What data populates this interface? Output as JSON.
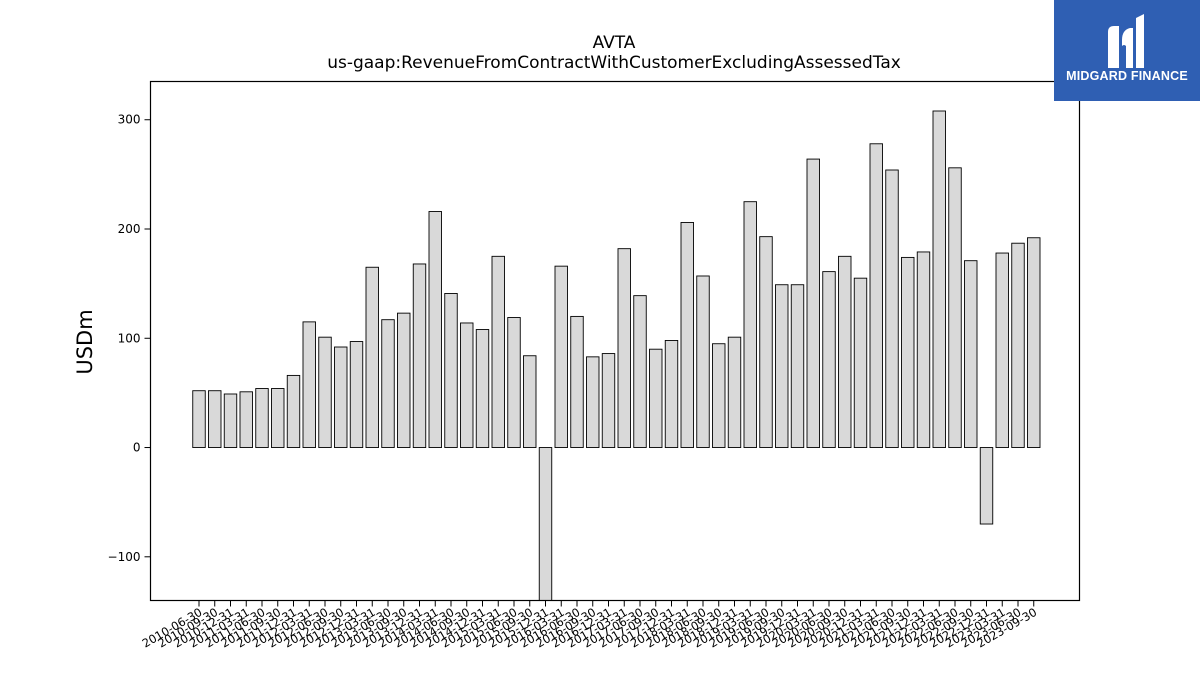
{
  "brand": {
    "name": "MIDGARD FINANCE",
    "logo_icon": "midgard-m-icon",
    "color": "#2f5fb3"
  },
  "chart_data": {
    "type": "bar",
    "title": "AVTA",
    "subtitle": "us-gaap:RevenueFromContractWithCustomerExcludingAssessedTax",
    "xlabel": "",
    "ylabel": "USDm",
    "ylim": [
      -140,
      335
    ],
    "yticks": [
      -100,
      0,
      100,
      200,
      300
    ],
    "grid": false,
    "bar_color": "#d9d9d9",
    "edge_color": "#000000",
    "categories": [
      "2010-06-30",
      "2010-09-30",
      "2010-12-31",
      "2011-03-31",
      "2011-06-30",
      "2011-09-30",
      "2011-12-31",
      "2012-03-31",
      "2012-06-30",
      "2012-09-30",
      "2012-12-31",
      "2013-03-31",
      "2013-06-30",
      "2013-09-30",
      "2013-12-31",
      "2014-03-31",
      "2014-06-30",
      "2014-09-30",
      "2014-12-31",
      "2015-03-31",
      "2015-06-30",
      "2015-09-30",
      "2015-12-31",
      "2016-03-31",
      "2016-06-30",
      "2016-09-30",
      "2016-12-31",
      "2017-03-31",
      "2017-06-30",
      "2017-09-30",
      "2017-12-31",
      "2018-03-31",
      "2018-06-30",
      "2018-09-30",
      "2018-12-31",
      "2019-03-31",
      "2019-06-30",
      "2019-09-30",
      "2019-12-31",
      "2020-03-31",
      "2020-06-30",
      "2020-09-30",
      "2020-12-31",
      "2021-03-31",
      "2021-06-30",
      "2021-09-30",
      "2021-12-31",
      "2022-03-31",
      "2022-06-30",
      "2022-09-30",
      "2022-12-31",
      "2023-03-31",
      "2023-06-30",
      "2023-09-30"
    ],
    "values": [
      52,
      52,
      49,
      51,
      54,
      54,
      66,
      115,
      101,
      92,
      97,
      165,
      117,
      123,
      168,
      216,
      141,
      114,
      108,
      175,
      119,
      84,
      -140,
      166,
      120,
      83,
      86,
      182,
      139,
      90,
      98,
      206,
      157,
      95,
      101,
      225,
      193,
      149,
      149,
      264,
      161,
      175,
      155,
      278,
      254,
      174,
      179,
      308,
      256,
      171,
      -70,
      178,
      187,
      192
    ]
  }
}
